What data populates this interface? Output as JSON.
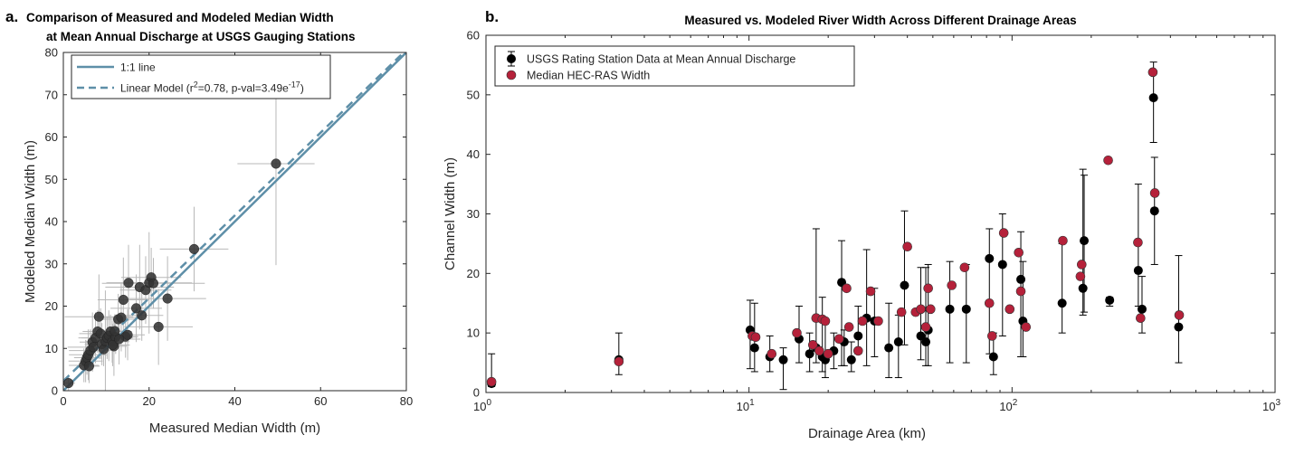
{
  "chart_data": [
    {
      "type": "scatter",
      "panel_label": "a.",
      "title": [
        "Comparison of Measured and Modeled Median Width",
        "at Mean Annual Discharge at USGS Gauging Stations"
      ],
      "xlabel": "Measured Median Width (m)",
      "ylabel": "Modeled Median Width (m)",
      "xlim": [
        0,
        80
      ],
      "ylim": [
        0,
        80
      ],
      "xticks": [
        0,
        20,
        40,
        60,
        80
      ],
      "yticks": [
        0,
        10,
        20,
        30,
        40,
        50,
        60,
        70,
        80
      ],
      "grid": false,
      "legend_position": "top-left",
      "legend": [
        {
          "label": "1:1 line",
          "style": "solid",
          "color": "#5e8fa8"
        },
        {
          "label_main": "Linear Model (r",
          "label_sup1": "2",
          "label_mid": "=0.78, p-val=3.49e",
          "label_sup2": "-17",
          "label_end": ")",
          "style": "dashed",
          "color": "#5e8fa8"
        }
      ],
      "lines": {
        "one_to_one": {
          "x": [
            0,
            80
          ],
          "y": [
            0,
            80
          ]
        },
        "linear_model": {
          "x": [
            0,
            80
          ],
          "y": [
            2.3,
            80.6
          ]
        }
      },
      "points": {
        "color": "#333333",
        "x": [
          1.2,
          4.8,
          5.2,
          5.5,
          5.8,
          6.0,
          6.3,
          6.8,
          7.0,
          7.5,
          8.0,
          8.3,
          8.7,
          9.0,
          9.4,
          9.8,
          10.2,
          10.6,
          11.0,
          11.4,
          11.8,
          12.2,
          12.8,
          13.5,
          14.0,
          14.5,
          15.0,
          15.2,
          17.0,
          17.8,
          18.3,
          19.2,
          20.0,
          20.5,
          22.2,
          21.0,
          24.3,
          11.5,
          13.0,
          12.0,
          30.5,
          49.6
        ],
        "y": [
          1.8,
          6.0,
          7.0,
          7.8,
          8.5,
          5.8,
          9.5,
          11.5,
          10.3,
          12.5,
          14.0,
          17.5,
          13.5,
          11.0,
          9.8,
          11.7,
          12.5,
          13.0,
          14.0,
          11.6,
          10.5,
          12.7,
          16.9,
          17.3,
          21.5,
          12.8,
          13.2,
          25.5,
          19.5,
          24.5,
          17.8,
          23.8,
          25.5,
          26.8,
          15.1,
          25.4,
          21.8,
          10.8,
          12.2,
          14.1,
          33.5,
          53.7
        ],
        "xerr": [
          1.5,
          3.5,
          4.0,
          3.0,
          4.5,
          2.5,
          5.0,
          3.0,
          6.0,
          4.0,
          3.5,
          8.0,
          5.0,
          4.0,
          3.0,
          4.5,
          6.0,
          3.0,
          5.0,
          4.0,
          3.0,
          5.0,
          4.0,
          5.0,
          6.0,
          3.0,
          4.0,
          5.0,
          6.0,
          8.0,
          5.0,
          6.0,
          10.0,
          7.0,
          8.0,
          12.0,
          9.0,
          4.0,
          5.0,
          3.0,
          8.0,
          9.0
        ],
        "yerr": [
          2.0,
          4.0,
          5.0,
          4.0,
          6.0,
          4.0,
          5.0,
          7.0,
          4.0,
          6.0,
          5.0,
          10.0,
          6.0,
          5.0,
          4.0,
          12.0,
          5.0,
          6.0,
          4.0,
          5.0,
          7.0,
          4.0,
          6.0,
          8.0,
          10.0,
          5.0,
          6.0,
          9.0,
          8.0,
          10.0,
          6.0,
          8.0,
          12.0,
          7.0,
          9.0,
          6.0,
          10.0,
          5.0,
          6.0,
          4.0,
          10.0,
          24.0
        ]
      }
    },
    {
      "type": "scatter",
      "panel_label": "b.",
      "title": "Measured vs. Modeled River Width Across Different Drainage Areas",
      "xlabel": "Drainage Area (km)",
      "ylabel": "Channel Width (m)",
      "xscale": "log",
      "xlim": [
        1,
        1000
      ],
      "ylim": [
        0,
        60
      ],
      "xtick_labels": [
        {
          "base": "10",
          "exp": "0"
        },
        {
          "base": "10",
          "exp": "1"
        },
        {
          "base": "10",
          "exp": "2"
        },
        {
          "base": "10",
          "exp": "3"
        }
      ],
      "yticks": [
        0,
        10,
        20,
        30,
        40,
        50,
        60
      ],
      "grid": false,
      "legend_position": "top-left",
      "series": [
        {
          "name": "USGS Rating Station Data at Mean Annual Discharge",
          "color": "#000000",
          "x": [
            1.05,
            3.2,
            10.1,
            10.5,
            12.0,
            13.5,
            15.5,
            17.0,
            18.0,
            19.0,
            19.5,
            21.0,
            22.5,
            23.0,
            24.5,
            26.0,
            28.0,
            30.0,
            34.0,
            37.0,
            39.0,
            45.0,
            47.0,
            48.0,
            58.0,
            67.0,
            82.0,
            85.0,
            92.0,
            108.0,
            110.0,
            155.0,
            186.0,
            188.0,
            235.0,
            302.0,
            312.0,
            345.0,
            348.0,
            430.0
          ],
          "y": [
            1.5,
            5.5,
            10.5,
            7.5,
            6.0,
            5.5,
            9.0,
            6.5,
            7.5,
            6.0,
            5.5,
            7.0,
            18.5,
            8.5,
            5.5,
            9.5,
            12.5,
            12.0,
            7.5,
            8.5,
            18.0,
            9.5,
            8.5,
            10.5,
            14.0,
            14.0,
            22.5,
            6.0,
            21.5,
            19.0,
            12.0,
            15.0,
            17.5,
            25.5,
            15.5,
            20.5,
            14.0,
            49.5,
            30.5,
            11.0
          ],
          "yerr_low": [
            0.5,
            2.5,
            6.5,
            4.0,
            2.5,
            5.0,
            4.0,
            3.0,
            2.5,
            2.5,
            3.0,
            3.0,
            14.0,
            4.0,
            2.0,
            3.0,
            8.0,
            6.0,
            5.0,
            6.0,
            10.0,
            4.0,
            4.0,
            6.0,
            9.0,
            9.0,
            16.0,
            3.0,
            12.0,
            13.0,
            6.0,
            5.0,
            4.5,
            12.0,
            1.0,
            6.0,
            4.0,
            7.5,
            9.0,
            6.0
          ],
          "yerr_high": [
            5.0,
            4.5,
            5.0,
            7.5,
            3.5,
            2.0,
            5.5,
            3.5,
            20.0,
            10.0,
            6.0,
            3.0,
            7.0,
            2.0,
            3.0,
            5.0,
            11.5,
            5.5,
            7.5,
            4.5,
            12.5,
            11.5,
            12.5,
            11.0,
            8.0,
            7.5,
            5.0,
            4.0,
            8.5,
            8.0,
            10.0,
            10.0,
            20.0,
            11.0,
            0.5,
            14.5,
            5.5,
            6.0,
            9.0,
            12.0
          ]
        },
        {
          "name": "Median HEC-RAS Width",
          "color": "#b5213a",
          "x": [
            1.05,
            3.2,
            10.3,
            10.6,
            12.2,
            15.2,
            17.5,
            18.0,
            18.5,
            19.0,
            19.5,
            20.0,
            22.0,
            23.5,
            24.0,
            26.0,
            27.0,
            29.0,
            31.0,
            38.0,
            40.0,
            43.0,
            45.0,
            47.0,
            48.0,
            49.0,
            59.0,
            66.0,
            82.0,
            84.0,
            93.0,
            98.0,
            106.0,
            108.0,
            113.0,
            156.0,
            182.0,
            184.0,
            232.0,
            301.0,
            308.0,
            343.0,
            349.0,
            432.0
          ],
          "y": [
            1.8,
            5.2,
            9.5,
            9.3,
            6.5,
            10.0,
            8.0,
            12.5,
            7.0,
            12.3,
            12.0,
            6.5,
            9.0,
            17.5,
            11.0,
            7.0,
            12.0,
            17.0,
            12.0,
            13.5,
            24.5,
            13.5,
            14.0,
            11.0,
            17.5,
            14.0,
            18.0,
            21.0,
            15.0,
            9.5,
            26.8,
            14.0,
            23.5,
            17.0,
            11.0,
            25.5,
            19.5,
            21.5,
            39.0,
            25.2,
            12.5,
            53.8,
            33.5,
            13.0
          ]
        }
      ]
    }
  ]
}
